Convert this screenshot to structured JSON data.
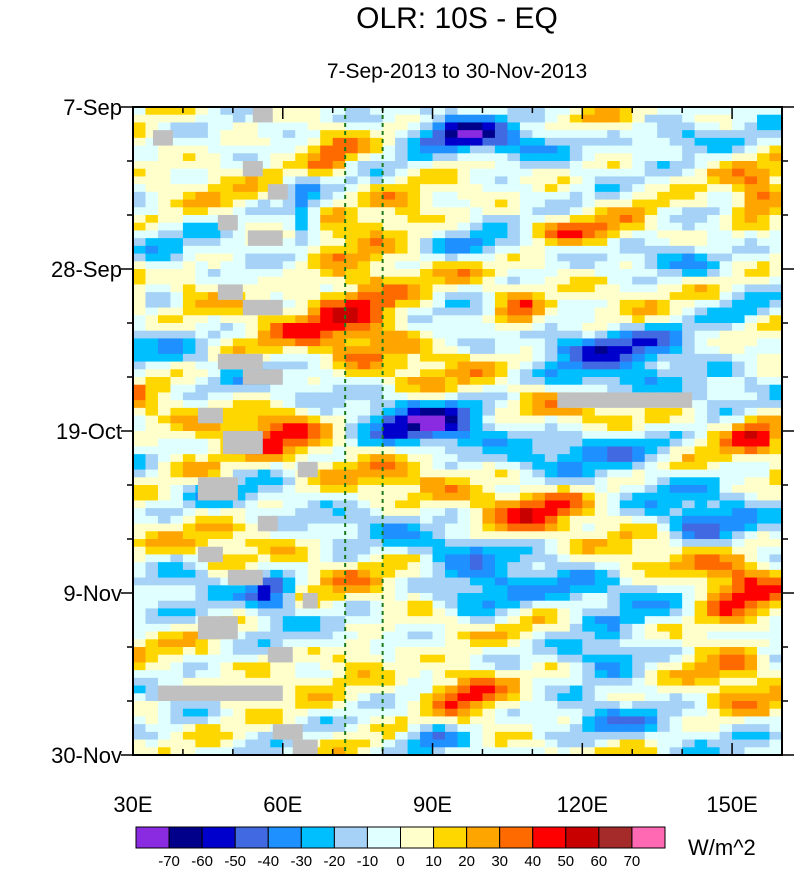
{
  "chart_data": {
    "type": "heatmap",
    "title": "OLR: 10S - EQ",
    "subtitle": "7-Sep-2013 to 30-Nov-2013",
    "units": "W/m^2",
    "x_range": [
      30,
      160
    ],
    "x_ticks": [
      {
        "value": 30,
        "label": "30E"
      },
      {
        "value": 60,
        "label": "60E"
      },
      {
        "value": 90,
        "label": "90E"
      },
      {
        "value": 120,
        "label": "120E"
      },
      {
        "value": 150,
        "label": "150E"
      }
    ],
    "y_range_days": [
      0,
      84
    ],
    "y_ticks": [
      {
        "value": 0,
        "label": "7-Sep"
      },
      {
        "value": 21,
        "label": "28-Sep"
      },
      {
        "value": 42,
        "label": "19-Oct"
      },
      {
        "value": 63,
        "label": "9-Nov"
      },
      {
        "value": 84,
        "label": "30-Nov"
      }
    ],
    "reference_lines_lon": [
      72.5,
      80
    ],
    "colorbar": {
      "levels": [
        -70,
        -60,
        -50,
        -40,
        -30,
        -20,
        -10,
        0,
        10,
        20,
        30,
        40,
        50,
        60,
        70
      ],
      "colors": [
        "#8a2be2",
        "#00008b",
        "#0000cd",
        "#4169e1",
        "#1e90ff",
        "#00bfff",
        "#a5d2f6",
        "#e0ffff",
        "#ffffcc",
        "#ffd700",
        "#ffa500",
        "#ff6a00",
        "#ff0000",
        "#c80000",
        "#a52a2a",
        "#ff69b4"
      ]
    },
    "missing_color": "#c0c0c0",
    "anomaly_features": [
      {
        "lon": 95,
        "day": 3,
        "value": -55,
        "rx": 9,
        "ry": 2.5
      },
      {
        "lon": 110,
        "day": 5,
        "value": -35,
        "rx": 10,
        "ry": 2
      },
      {
        "lon": 140,
        "day": 4,
        "value": -30,
        "rx": 12,
        "ry": 2
      },
      {
        "lon": 70,
        "day": 6,
        "value": 30,
        "rx": 5,
        "ry": 3
      },
      {
        "lon": 64,
        "day": 14,
        "value": -40,
        "rx": 3,
        "ry": 4
      },
      {
        "lon": 84,
        "day": 12,
        "value": 20,
        "rx": 6,
        "ry": 2
      },
      {
        "lon": 155,
        "day": 12,
        "value": 45,
        "rx": 5,
        "ry": 2.5
      },
      {
        "lon": 120,
        "day": 16,
        "value": 25,
        "rx": 15,
        "ry": 2
      },
      {
        "lon": 100,
        "day": 18,
        "value": -35,
        "rx": 12,
        "ry": 2
      },
      {
        "lon": 140,
        "day": 20,
        "value": -25,
        "rx": 10,
        "ry": 2
      },
      {
        "lon": 75,
        "day": 25,
        "value": 40,
        "rx": 12,
        "ry": 7
      },
      {
        "lon": 107,
        "day": 27,
        "value": 45,
        "rx": 5,
        "ry": 2.5
      },
      {
        "lon": 35,
        "day": 24,
        "value": -25,
        "rx": 4,
        "ry": 3
      },
      {
        "lon": 130,
        "day": 31,
        "value": -35,
        "rx": 20,
        "ry": 3
      },
      {
        "lon": 125,
        "day": 36,
        "value": -30,
        "rx": 10,
        "ry": 2
      },
      {
        "lon": 152,
        "day": 27,
        "value": -20,
        "rx": 6,
        "ry": 2
      },
      {
        "lon": 60,
        "day": 41,
        "value": 25,
        "rx": 8,
        "ry": 4
      },
      {
        "lon": 90,
        "day": 41,
        "value": -45,
        "rx": 12,
        "ry": 3
      },
      {
        "lon": 130,
        "day": 44,
        "value": -30,
        "rx": 15,
        "ry": 2.5
      },
      {
        "lon": 155,
        "day": 42,
        "value": 30,
        "rx": 5,
        "ry": 3
      },
      {
        "lon": 40,
        "day": 47,
        "value": 25,
        "rx": 8,
        "ry": 2
      },
      {
        "lon": 110,
        "day": 52,
        "value": 20,
        "rx": 10,
        "ry": 3
      },
      {
        "lon": 145,
        "day": 55,
        "value": -40,
        "rx": 10,
        "ry": 3
      },
      {
        "lon": 95,
        "day": 57,
        "value": -25,
        "rx": 8,
        "ry": 2
      },
      {
        "lon": 58,
        "day": 63,
        "value": -55,
        "rx": 5,
        "ry": 2.5
      },
      {
        "lon": 40,
        "day": 60,
        "value": -20,
        "rx": 6,
        "ry": 2
      },
      {
        "lon": 100,
        "day": 64,
        "value": -40,
        "rx": 10,
        "ry": 3
      },
      {
        "lon": 150,
        "day": 64,
        "value": 35,
        "rx": 8,
        "ry": 6
      },
      {
        "lon": 120,
        "day": 62,
        "value": -20,
        "rx": 10,
        "ry": 2
      },
      {
        "lon": 125,
        "day": 71,
        "value": -50,
        "rx": 10,
        "ry": 3
      },
      {
        "lon": 97,
        "day": 75,
        "value": 45,
        "rx": 9,
        "ry": 3
      },
      {
        "lon": 75,
        "day": 71,
        "value": 20,
        "rx": 6,
        "ry": 2
      },
      {
        "lon": 150,
        "day": 72,
        "value": 20,
        "rx": 8,
        "ry": 3
      },
      {
        "lon": 90,
        "day": 82,
        "value": -40,
        "rx": 7,
        "ry": 2
      },
      {
        "lon": 130,
        "day": 80,
        "value": -25,
        "rx": 12,
        "ry": 2
      },
      {
        "lon": 40,
        "day": 78,
        "value": -20,
        "rx": 6,
        "ry": 2
      }
    ],
    "missing_blocks": [
      {
        "lon0": 54,
        "lon1": 58,
        "day0": 0,
        "day1": 2
      },
      {
        "lon0": 34,
        "lon1": 38,
        "day0": 3,
        "day1": 5
      },
      {
        "lon0": 52,
        "lon1": 56,
        "day0": 7,
        "day1": 9
      },
      {
        "lon0": 57,
        "lon1": 61,
        "day0": 10,
        "day1": 12
      },
      {
        "lon0": 47,
        "lon1": 51,
        "day0": 14,
        "day1": 16
      },
      {
        "lon0": 53,
        "lon1": 60,
        "day0": 16,
        "day1": 18
      },
      {
        "lon0": 47,
        "lon1": 52,
        "day0": 23,
        "day1": 25
      },
      {
        "lon0": 52,
        "lon1": 60,
        "day0": 25,
        "day1": 27
      },
      {
        "lon0": 47,
        "lon1": 56,
        "day0": 32,
        "day1": 34
      },
      {
        "lon0": 52,
        "lon1": 60,
        "day0": 34,
        "day1": 36
      },
      {
        "lon0": 43,
        "lon1": 48,
        "day0": 39,
        "day1": 41
      },
      {
        "lon0": 48,
        "lon1": 56,
        "day0": 42,
        "day1": 45
      },
      {
        "lon0": 63,
        "lon1": 67,
        "day0": 46,
        "day1": 48
      },
      {
        "lon0": 43,
        "lon1": 51,
        "day0": 48,
        "day1": 51
      },
      {
        "lon0": 55,
        "lon1": 59,
        "day0": 53,
        "day1": 55
      },
      {
        "lon0": 43,
        "lon1": 48,
        "day0": 57,
        "day1": 59
      },
      {
        "lon0": 49,
        "lon1": 56,
        "day0": 60,
        "day1": 62
      },
      {
        "lon0": 64,
        "lon1": 67,
        "day0": 63,
        "day1": 65
      },
      {
        "lon0": 43,
        "lon1": 51,
        "day0": 66,
        "day1": 69
      },
      {
        "lon0": 57,
        "lon1": 62,
        "day0": 70,
        "day1": 72
      },
      {
        "lon0": 35,
        "lon1": 60,
        "day0": 75,
        "day1": 77
      },
      {
        "lon0": 58,
        "lon1": 64,
        "day0": 80,
        "day1": 82
      },
      {
        "lon0": 62,
        "lon1": 67,
        "day0": 82,
        "day1": 84
      },
      {
        "lon0": 115,
        "lon1": 142,
        "day0": 37,
        "day1": 39
      }
    ]
  }
}
